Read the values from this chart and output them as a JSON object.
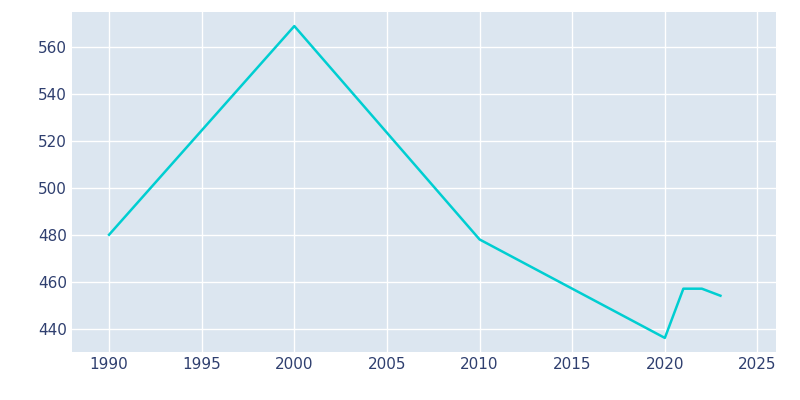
{
  "years": [
    1990,
    2000,
    2010,
    2020,
    2021,
    2022,
    2023
  ],
  "population": [
    480,
    569,
    478,
    436,
    457,
    457,
    454
  ],
  "line_color": "#00CED1",
  "background_color": "#ffffff",
  "plot_background_color": "#dce6f0",
  "grid_color": "#ffffff",
  "tick_label_color": "#2f3f6f",
  "xlim": [
    1988,
    2026
  ],
  "ylim": [
    430,
    575
  ],
  "yticks": [
    440,
    460,
    480,
    500,
    520,
    540,
    560
  ],
  "xticks": [
    1990,
    1995,
    2000,
    2005,
    2010,
    2015,
    2020,
    2025
  ],
  "line_width": 1.8
}
